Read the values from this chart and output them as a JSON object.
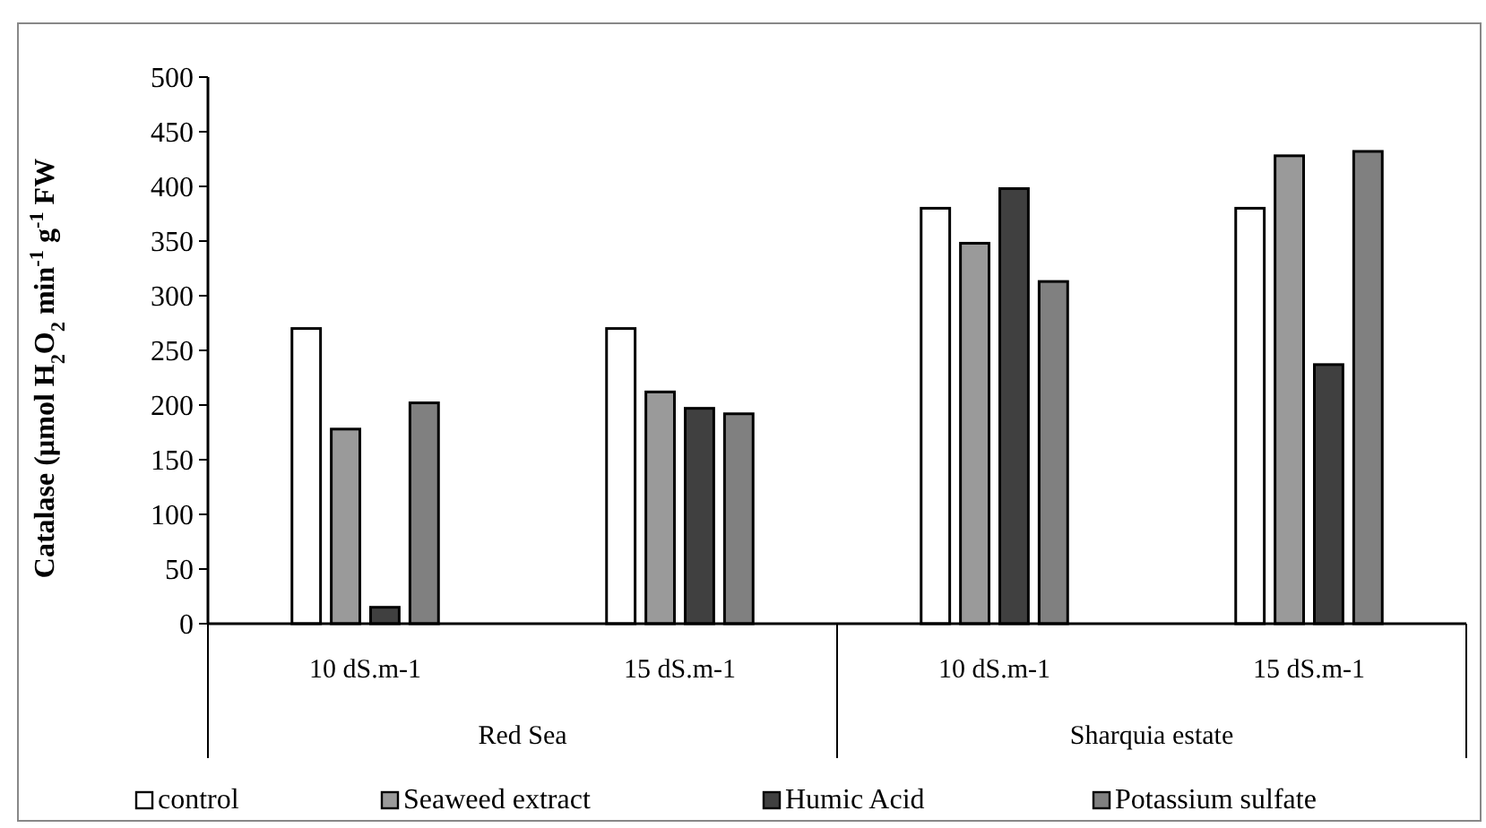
{
  "chart_data": {
    "type": "bar",
    "ylabel": "Catalase (µmol H$_{2}$O$_{2}$ min$^{-1}$ g$^{-1}$ FW",
    "categories": [
      "10 dS.m-1",
      "15 dS.m-1",
      "10 dS.m-1",
      "15 dS.m-1"
    ],
    "annotations": [
      "Red Sea",
      "Sharquia estate"
    ],
    "series": [
      {
        "name": "control",
        "color": "#ffffff",
        "values": [
          270,
          270,
          380,
          380
        ]
      },
      {
        "name": "Seaweed extract",
        "color": "#9a9a9a",
        "values": [
          178,
          212,
          348,
          428
        ]
      },
      {
        "name": "Humic Acid",
        "color": "#404040",
        "values": [
          15,
          197,
          398,
          237
        ]
      },
      {
        "name": "Potassium sulfate",
        "color": "#808080",
        "values": [
          202,
          192,
          313,
          432
        ]
      }
    ],
    "ylim": [
      0,
      500
    ],
    "yticks": [
      0,
      50,
      100,
      150,
      200,
      250,
      300,
      350,
      400,
      450,
      500
    ],
    "grid": false,
    "legend": "bottom"
  }
}
